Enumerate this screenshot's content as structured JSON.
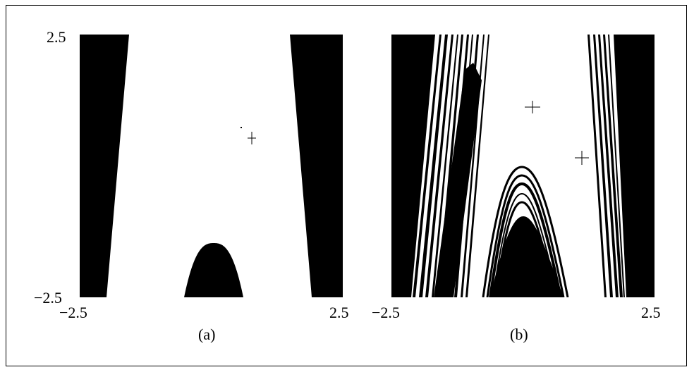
{
  "figure": {
    "panels": [
      {
        "caption": "(a)",
        "x_ticks": [
          "−2.5",
          "2.5"
        ],
        "y_ticks": [
          "2.5",
          "−2.5"
        ],
        "fill_color": "#000000",
        "background_color": "#ffffff"
      },
      {
        "caption": "(b)",
        "x_ticks": [
          "−2.5",
          "2.5"
        ],
        "fill_color": "#000000",
        "background_color": "#ffffff"
      }
    ]
  }
}
